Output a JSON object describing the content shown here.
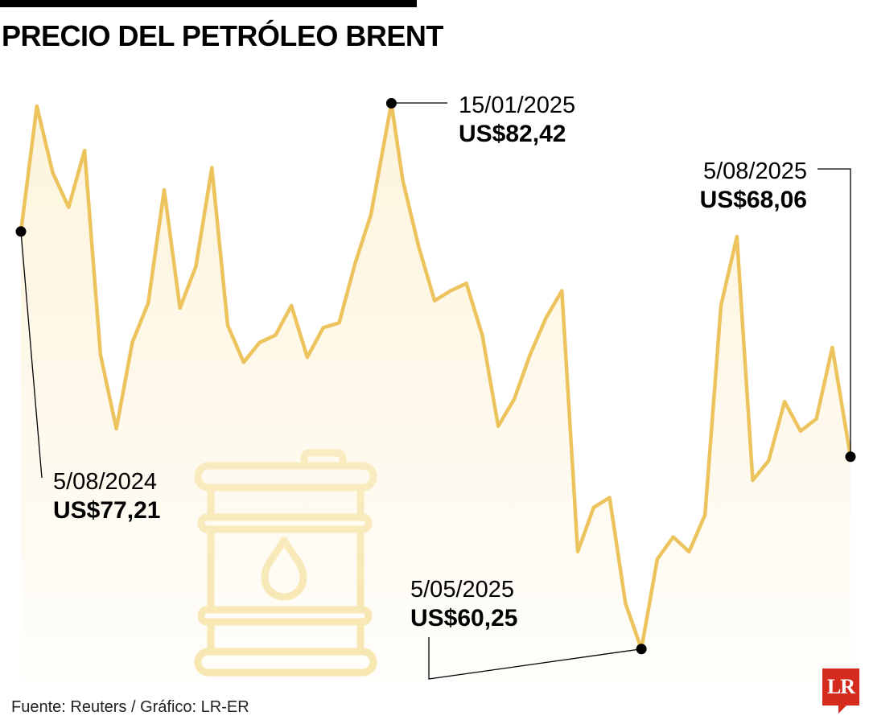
{
  "title": "PRECIO DEL PETRÓLEO BRENT",
  "source": "Fuente: Reuters / Gráfico: LR-ER",
  "logo": "LR",
  "colors": {
    "line": "#ecc35c",
    "area": "#fdf4dc",
    "barrel": "#f6e4a8",
    "marker": "#000000",
    "logo": "#d52b1e"
  },
  "icons": [
    "oil-barrel-icon",
    "oil-drop-icon"
  ],
  "chart_data": {
    "type": "area",
    "title": "PRECIO DEL PETRÓLEO BRENT",
    "xlabel": "",
    "ylabel": "",
    "xlim": [
      "2024-08-05",
      "2025-08-05"
    ],
    "ylim": [
      59,
      84
    ],
    "grid": false,
    "legend": "none",
    "x": [
      "2024-08-05",
      "2024-08-12",
      "2024-08-19",
      "2024-08-26",
      "2024-09-02",
      "2024-09-09",
      "2024-09-16",
      "2024-09-23",
      "2024-09-30",
      "2024-10-07",
      "2024-10-14",
      "2024-10-21",
      "2024-10-28",
      "2024-11-04",
      "2024-11-11",
      "2024-11-18",
      "2024-11-25",
      "2024-12-02",
      "2024-12-09",
      "2024-12-16",
      "2024-12-23",
      "2024-12-30",
      "2025-01-06",
      "2025-01-15",
      "2025-01-20",
      "2025-01-27",
      "2025-02-03",
      "2025-02-10",
      "2025-02-17",
      "2025-02-24",
      "2025-03-03",
      "2025-03-10",
      "2025-03-17",
      "2025-03-24",
      "2025-03-31",
      "2025-04-07",
      "2025-04-14",
      "2025-04-21",
      "2025-04-28",
      "2025-05-05",
      "2025-05-12",
      "2025-05-19",
      "2025-05-26",
      "2025-06-02",
      "2025-06-09",
      "2025-06-16",
      "2025-06-23",
      "2025-06-30",
      "2025-07-07",
      "2025-07-14",
      "2025-07-21",
      "2025-07-28",
      "2025-08-05"
    ],
    "values": [
      77.21,
      82.3,
      79.6,
      78.2,
      80.5,
      72.2,
      69.2,
      72.7,
      74.3,
      78.9,
      74.1,
      75.8,
      79.8,
      73.4,
      71.9,
      72.7,
      73.0,
      74.2,
      72.1,
      73.3,
      73.5,
      75.9,
      77.9,
      82.42,
      79.3,
      76.6,
      74.4,
      74.8,
      75.1,
      73.0,
      69.3,
      70.4,
      72.2,
      73.7,
      74.8,
      64.2,
      66.0,
      66.4,
      62.1,
      60.25,
      63.9,
      64.8,
      64.2,
      65.7,
      74.2,
      77.0,
      67.1,
      67.9,
      70.3,
      69.1,
      69.6,
      72.5,
      68.06
    ],
    "annotations": [
      {
        "date": "5/08/2024",
        "value": "US$77,21"
      },
      {
        "date": "15/01/2025",
        "value": "US$82,42"
      },
      {
        "date": "5/05/2025",
        "value": "US$60,25"
      },
      {
        "date": "5/08/2025",
        "value": "US$68,06"
      }
    ]
  }
}
